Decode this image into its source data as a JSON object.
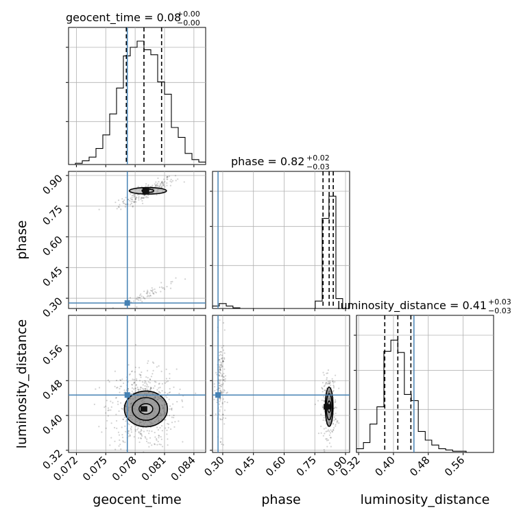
{
  "chart_data": {
    "type": "corner",
    "parameters": [
      "geocent_time",
      "phase",
      "luminosity_distance"
    ],
    "truths": [
      0.0772,
      0.277,
      0.447
    ],
    "truth_color": "#4682b4",
    "titles": [
      {
        "main": "geocent_time = 0.08",
        "sup": "+0.00",
        "sub": "−0.00"
      },
      {
        "main": "phase = 0.82",
        "sup": "+0.02",
        "sub": "−0.03"
      },
      {
        "main": "luminosity_distance = 0.41",
        "sup": "+0.03",
        "sub": "−0.03"
      }
    ],
    "xlabels": [
      "geocent_time",
      "phase",
      "luminosity_distance"
    ],
    "ylabels": {
      "phase": "phase",
      "luminosity_distance": "luminosity_distance"
    },
    "ticks": {
      "geocent_time": [
        "0.072",
        "0.075",
        "0.078",
        "0.081",
        "0.084"
      ],
      "phase": [
        "0.30",
        "0.45",
        "0.60",
        "0.75",
        "0.90"
      ],
      "luminosity_distance": [
        "0.32",
        "0.40",
        "0.48",
        "0.56"
      ]
    },
    "ranges": {
      "geocent_time": [
        0.0712,
        0.0852
      ],
      "phase": [
        0.25,
        0.92
      ],
      "luminosity_distance": [
        0.315,
        0.63
      ]
    },
    "histograms": {
      "geocent_time": {
        "edges": [
          0.0712,
          0.0719,
          0.0726,
          0.0733,
          0.074,
          0.0747,
          0.0754,
          0.0761,
          0.0768,
          0.0775,
          0.0782,
          0.0789,
          0.0796,
          0.0803,
          0.081,
          0.0817,
          0.0824,
          0.0831,
          0.0838,
          0.0845,
          0.0852
        ],
        "counts": [
          0,
          0.01,
          0.03,
          0.06,
          0.13,
          0.24,
          0.41,
          0.62,
          0.88,
          0.95,
          1.0,
          0.93,
          0.89,
          0.67,
          0.57,
          0.3,
          0.22,
          0.09,
          0.04,
          0.02
        ],
        "quantiles": [
          0.0771,
          0.0789,
          0.0807
        ]
      },
      "phase": {
        "edges": [
          0.25,
          0.283,
          0.317,
          0.35,
          0.384,
          0.417,
          0.451,
          0.484,
          0.518,
          0.551,
          0.585,
          0.618,
          0.652,
          0.685,
          0.719,
          0.752,
          0.786,
          0.819,
          0.853,
          0.886,
          0.92
        ],
        "counts": [
          0.02,
          0.04,
          0.02,
          0.005,
          0,
          0,
          0,
          0,
          0,
          0,
          0,
          0,
          0,
          0,
          0,
          0.06,
          0.73,
          0.91,
          0.08,
          0
        ],
        "quantiles": [
          0.79,
          0.82,
          0.84
        ]
      },
      "luminosity_distance": {
        "edges": [
          0.315,
          0.331,
          0.346,
          0.362,
          0.378,
          0.394,
          0.41,
          0.425,
          0.441,
          0.457,
          0.473,
          0.488,
          0.504,
          0.52,
          0.536,
          0.551,
          0.567,
          0.583,
          0.599,
          0.614,
          0.63
        ],
        "counts": [
          0.03,
          0.08,
          0.23,
          0.37,
          0.82,
          0.91,
          0.81,
          0.47,
          0.42,
          0.17,
          0.1,
          0.06,
          0.03,
          0.02,
          0.01,
          0.01,
          0,
          0,
          0,
          0
        ],
        "quantiles": [
          0.38,
          0.41,
          0.44
        ]
      }
    },
    "scatter_clusters": {
      "phase_vs_geocent_time": [
        {
          "x_mean": 0.0792,
          "y_mean": 0.82,
          "sx": 0.0014,
          "sy": 0.018,
          "n": 220,
          "slope": 22
        },
        {
          "x_mean": 0.0795,
          "y_mean": 0.325,
          "sx": 0.0013,
          "sy": 0.012,
          "n": 60,
          "slope": 20
        }
      ],
      "luminosity_distance_vs_geocent_time": [
        {
          "x_mean": 0.0788,
          "y_mean": 0.415,
          "sx": 0.0017,
          "sy": 0.045,
          "n": 600,
          "slope": 0
        }
      ],
      "luminosity_distance_vs_phase": [
        {
          "x_mean": 0.82,
          "y_mean": 0.42,
          "sx": 0.018,
          "sy": 0.035,
          "n": 260,
          "slope": 0
        },
        {
          "x_mean": 0.29,
          "y_mean": 0.47,
          "sx": 0.012,
          "sy": 0.055,
          "n": 160,
          "slope": 0
        }
      ]
    },
    "contours": {
      "luminosity_distance_vs_geocent_time": {
        "cx": 0.0791,
        "cy": 0.415,
        "levels": [
          [
            0.0007,
            0.012
          ],
          [
            0.0014,
            0.026
          ],
          [
            0.0022,
            0.041
          ]
        ]
      },
      "luminosity_distance_vs_phase": {
        "cx": 0.82,
        "cy": 0.42,
        "levels": [
          [
            0.008,
            0.013
          ],
          [
            0.014,
            0.03
          ],
          [
            0.019,
            0.045
          ]
        ]
      },
      "phase_vs_geocent_time": {
        "cx": 0.0793,
        "cy": 0.825,
        "levels": [
          [
            0.0006,
            0.008
          ],
          [
            0.0019,
            0.016
          ]
        ]
      }
    },
    "grid": true
  }
}
